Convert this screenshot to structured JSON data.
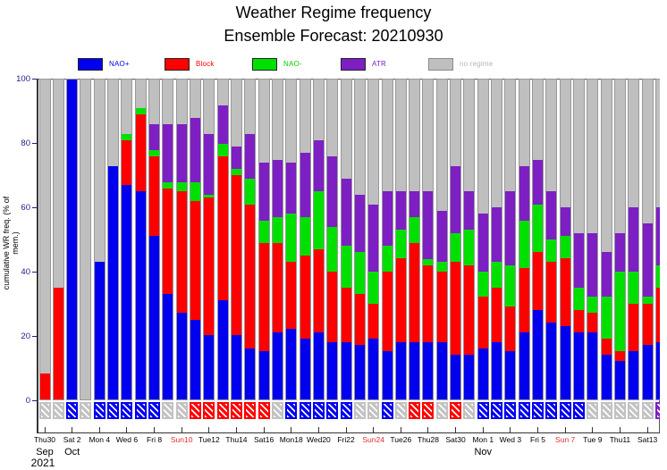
{
  "title": "Weather Regime frequency",
  "subtitle": "Ensemble Forecast: 20210930",
  "y_axis_title": "cumulative WR freq. (% of mem.)",
  "yticks": [
    0,
    20,
    40,
    60,
    80,
    100
  ],
  "legend": [
    {
      "label": "NAO+",
      "color": "#0000ee"
    },
    {
      "label": "Block",
      "color": "#ff0000"
    },
    {
      "label": "NAO-",
      "color": "#00e000"
    },
    {
      "label": "ATR",
      "color": "#7d1fc3"
    },
    {
      "label": "no regime",
      "color": "#bfbfbf"
    }
  ],
  "chart_data": {
    "type": "bar",
    "stacked": true,
    "ylim": [
      0,
      100
    ],
    "ylabel": "cumulative WR freq. (% of mem.)",
    "series_order": [
      "NAO+",
      "Block",
      "NAO-",
      "ATR",
      "no regime"
    ],
    "series_colors": [
      "#0000ee",
      "#ff0000",
      "#00e000",
      "#7d1fc3",
      "#bfbfbf"
    ],
    "bars": [
      {
        "date": "Thu30 Sep",
        "values": [
          0,
          8,
          0,
          0,
          92
        ],
        "dominant": "no regime"
      },
      {
        "date": "Fri 1 Oct",
        "values": [
          0,
          35,
          0,
          0,
          65
        ],
        "dominant": "no regime"
      },
      {
        "date": "Sat 2 Oct",
        "values": [
          100,
          0,
          0,
          0,
          0
        ],
        "dominant": "NAO+"
      },
      {
        "date": "Sun 3 Oct",
        "values": [
          0,
          0,
          0,
          0,
          100
        ],
        "dominant": "no regime"
      },
      {
        "date": "Mon 4 Oct",
        "values": [
          43,
          0,
          0,
          0,
          57
        ],
        "dominant": "NAO+"
      },
      {
        "date": "Tue 5 Oct",
        "values": [
          73,
          0,
          0,
          0,
          27
        ],
        "dominant": "NAO+"
      },
      {
        "date": "Wed 6 Oct",
        "values": [
          67,
          14,
          2,
          0,
          17
        ],
        "dominant": "NAO+"
      },
      {
        "date": "Thu 7 Oct",
        "values": [
          65,
          24,
          2,
          0,
          9
        ],
        "dominant": "NAO+"
      },
      {
        "date": "Fri 8 Oct",
        "values": [
          51,
          25,
          2,
          8,
          14
        ],
        "dominant": "NAO+"
      },
      {
        "date": "Sat 9 Oct",
        "values": [
          33,
          33,
          2,
          18,
          14
        ],
        "dominant": "no regime"
      },
      {
        "date": "Sun10 Oct",
        "values": [
          27,
          38,
          3,
          18,
          14
        ],
        "dominant": "no regime"
      },
      {
        "date": "Mon11 Oct",
        "values": [
          25,
          37,
          6,
          20,
          12
        ],
        "dominant": "Block"
      },
      {
        "date": "Tue12 Oct",
        "values": [
          20,
          43,
          1,
          19,
          17
        ],
        "dominant": "Block"
      },
      {
        "date": "Wed13 Oct",
        "values": [
          31,
          45,
          4,
          12,
          8
        ],
        "dominant": "Block"
      },
      {
        "date": "Thu14 Oct",
        "values": [
          20,
          50,
          2,
          7,
          21
        ],
        "dominant": "Block"
      },
      {
        "date": "Fri15 Oct",
        "values": [
          16,
          45,
          8,
          14,
          17
        ],
        "dominant": "Block"
      },
      {
        "date": "Sat16 Oct",
        "values": [
          15,
          34,
          7,
          18,
          26
        ],
        "dominant": "Block"
      },
      {
        "date": "Sun17 Oct",
        "values": [
          21,
          28,
          8,
          18,
          25
        ],
        "dominant": "no regime"
      },
      {
        "date": "Mon18 Oct",
        "values": [
          22,
          21,
          15,
          16,
          26
        ],
        "dominant": "NAO+"
      },
      {
        "date": "Tue19 Oct",
        "values": [
          19,
          26,
          12,
          20,
          23
        ],
        "dominant": "NAO+"
      },
      {
        "date": "Wed20 Oct",
        "values": [
          21,
          26,
          18,
          16,
          19
        ],
        "dominant": "NAO+"
      },
      {
        "date": "Thu21 Oct",
        "values": [
          18,
          22,
          14,
          22,
          24
        ],
        "dominant": "NAO+"
      },
      {
        "date": "Fri22 Oct",
        "values": [
          18,
          17,
          13,
          21,
          31
        ],
        "dominant": "NAO+"
      },
      {
        "date": "Sat23 Oct",
        "values": [
          17,
          16,
          13,
          18,
          36
        ],
        "dominant": "no regime"
      },
      {
        "date": "Sun24 Oct",
        "values": [
          19,
          11,
          10,
          21,
          39
        ],
        "dominant": "no regime"
      },
      {
        "date": "Mon25 Oct",
        "values": [
          15,
          25,
          8,
          17,
          35
        ],
        "dominant": "NAO+"
      },
      {
        "date": "Tue26 Oct",
        "values": [
          18,
          26,
          9,
          12,
          35
        ],
        "dominant": "no regime"
      },
      {
        "date": "Wed27 Oct",
        "values": [
          18,
          31,
          8,
          8,
          35
        ],
        "dominant": "Block"
      },
      {
        "date": "Thu28 Oct",
        "values": [
          18,
          24,
          2,
          21,
          35
        ],
        "dominant": "Block"
      },
      {
        "date": "Fri29 Oct",
        "values": [
          18,
          22,
          3,
          16,
          41
        ],
        "dominant": "no regime"
      },
      {
        "date": "Sat30 Oct",
        "values": [
          14,
          29,
          9,
          21,
          27
        ],
        "dominant": "Block"
      },
      {
        "date": "Sun31 Oct",
        "values": [
          14,
          28,
          11,
          12,
          35
        ],
        "dominant": "no regime"
      },
      {
        "date": "Mon 1 Nov",
        "values": [
          16,
          16,
          8,
          18,
          42
        ],
        "dominant": "NAO+"
      },
      {
        "date": "Tue 2 Nov",
        "values": [
          18,
          17,
          8,
          17,
          40
        ],
        "dominant": "NAO+"
      },
      {
        "date": "Wed 3 Nov",
        "values": [
          15,
          14,
          13,
          23,
          35
        ],
        "dominant": "NAO+"
      },
      {
        "date": "Thu 4 Nov",
        "values": [
          21,
          20,
          15,
          17,
          27
        ],
        "dominant": "NAO+"
      },
      {
        "date": "Fri 5 Nov",
        "values": [
          28,
          18,
          15,
          14,
          25
        ],
        "dominant": "NAO+"
      },
      {
        "date": "Sat 6 Nov",
        "values": [
          24,
          19,
          7,
          15,
          35
        ],
        "dominant": "NAO+"
      },
      {
        "date": "Sun 7 Nov",
        "values": [
          23,
          21,
          7,
          9,
          40
        ],
        "dominant": "NAO+"
      },
      {
        "date": "Mon 8 Nov",
        "values": [
          21,
          7,
          7,
          17,
          48
        ],
        "dominant": "NAO+"
      },
      {
        "date": "Tue 9 Nov",
        "values": [
          21,
          6,
          5,
          20,
          48
        ],
        "dominant": "no regime"
      },
      {
        "date": "Wed10 Nov",
        "values": [
          14,
          5,
          13,
          14,
          54
        ],
        "dominant": "no regime"
      },
      {
        "date": "Thu11 Nov",
        "values": [
          12,
          3,
          25,
          12,
          48
        ],
        "dominant": "no regime"
      },
      {
        "date": "Fri12 Nov",
        "values": [
          15,
          15,
          10,
          20,
          40
        ],
        "dominant": "no regime"
      },
      {
        "date": "Sat13 Nov",
        "values": [
          17,
          13,
          2,
          23,
          45
        ],
        "dominant": "no regime"
      },
      {
        "date": "Sun14 Nov",
        "values": [
          18,
          17,
          7,
          18,
          40
        ],
        "dominant": "ATR"
      }
    ],
    "xticks": [
      {
        "label": "Thu30",
        "bar": 1,
        "red": false
      },
      {
        "label": "Sat 2",
        "bar": 3,
        "red": false
      },
      {
        "label": "Mon 4",
        "bar": 5,
        "red": false
      },
      {
        "label": "Wed 6",
        "bar": 7,
        "red": false
      },
      {
        "label": "Fri 8",
        "bar": 9,
        "red": false
      },
      {
        "label": "Sun10",
        "bar": 11,
        "red": true
      },
      {
        "label": "Tue12",
        "bar": 13,
        "red": false
      },
      {
        "label": "Thu14",
        "bar": 15,
        "red": false
      },
      {
        "label": "Sat16",
        "bar": 17,
        "red": false
      },
      {
        "label": "Mon18",
        "bar": 19,
        "red": false
      },
      {
        "label": "Wed20",
        "bar": 21,
        "red": false
      },
      {
        "label": "Fri22",
        "bar": 23,
        "red": false
      },
      {
        "label": "Sun24",
        "bar": 25,
        "red": true
      },
      {
        "label": "Tue26",
        "bar": 27,
        "red": false
      },
      {
        "label": "Thu28",
        "bar": 29,
        "red": false
      },
      {
        "label": "Sat30",
        "bar": 31,
        "red": false
      },
      {
        "label": "Mon 1",
        "bar": 33,
        "red": false
      },
      {
        "label": "Wed 3",
        "bar": 35,
        "red": false
      },
      {
        "label": "Fri 5",
        "bar": 37,
        "red": false
      },
      {
        "label": "Sun 7",
        "bar": 39,
        "red": true
      },
      {
        "label": "Tue 9",
        "bar": 41,
        "red": false
      },
      {
        "label": "Thu11",
        "bar": 43,
        "red": false
      },
      {
        "label": "Sat13",
        "bar": 45,
        "red": false
      }
    ],
    "month_labels": [
      {
        "label": "Sep",
        "bar": 1
      },
      {
        "label": "Oct",
        "bar": 3
      },
      {
        "label": "Nov",
        "bar": 33
      }
    ],
    "year_label": {
      "label": "2021",
      "bar": 1
    }
  }
}
